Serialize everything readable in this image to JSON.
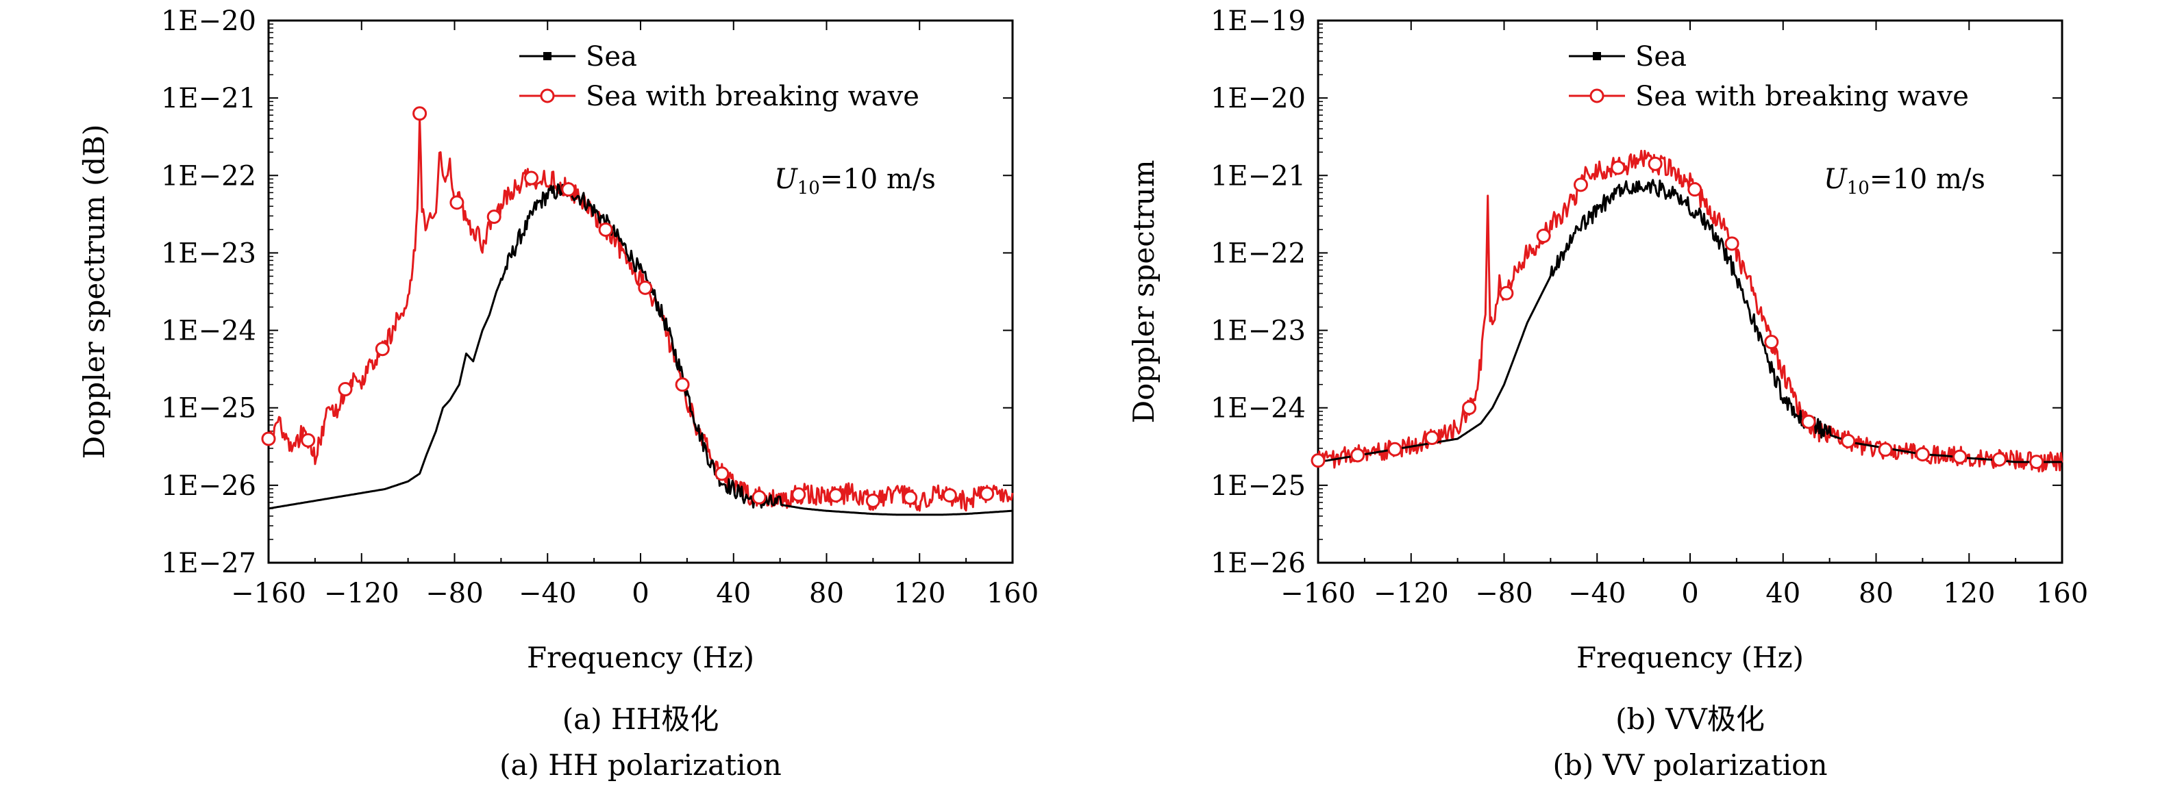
{
  "chart_data": [
    {
      "type": "line",
      "panel": "a",
      "xlabel": "Frequency (Hz)",
      "ylabel": "Doppler spectrum (dB)",
      "xlim": [
        -160,
        160
      ],
      "xticks": [
        -160,
        -120,
        -80,
        -40,
        0,
        40,
        80,
        120,
        160
      ],
      "ylog_exponents": [
        -27,
        -20
      ],
      "yscale": "log",
      "yticks": [
        "1E−27",
        "1E−26",
        "1E−25",
        "1E−24",
        "1E−23",
        "1E−22",
        "1E−21",
        "1E−20"
      ],
      "legend_position": "top-center",
      "annotation": {
        "var": "U",
        "sub": "10",
        "rest": "=10 m/s"
      },
      "caption_cn": "(a) HH极化",
      "caption_en": "(a) HH polarization",
      "series": [
        {
          "name": "Sea",
          "color": "#000000",
          "marker": "square",
          "x": [
            -160,
            -140,
            -120,
            -110,
            -100,
            -95,
            -92,
            -88,
            -85,
            -82,
            -78,
            -75,
            -72,
            -68,
            -65,
            -62,
            -58,
            -55,
            -52,
            -48,
            -45,
            -40,
            -35,
            -30,
            -25,
            -20,
            -15,
            -10,
            -5,
            0,
            5,
            10,
            15,
            20,
            25,
            30,
            35,
            40,
            45,
            50,
            60,
            70,
            80,
            90,
            100,
            110,
            120,
            130,
            140,
            150,
            160
          ],
          "y": [
            -26.3,
            -26.2,
            -26.1,
            -26.05,
            -25.95,
            -25.85,
            -25.6,
            -25.3,
            -25.0,
            -24.9,
            -24.7,
            -24.3,
            -24.4,
            -24.0,
            -23.8,
            -23.5,
            -23.2,
            -23.0,
            -22.8,
            -22.6,
            -22.4,
            -22.25,
            -22.2,
            -22.2,
            -22.3,
            -22.45,
            -22.6,
            -22.8,
            -23.0,
            -23.25,
            -23.5,
            -23.85,
            -24.3,
            -24.8,
            -25.3,
            -25.7,
            -25.95,
            -26.05,
            -26.15,
            -26.2,
            -26.25,
            -26.3,
            -26.33,
            -26.35,
            -26.37,
            -26.38,
            -26.38,
            -26.38,
            -26.37,
            -26.35,
            -26.33
          ]
        },
        {
          "name": "Sea with breaking wave",
          "color": "#e31a1c",
          "marker": "circle-open",
          "x": [
            -160,
            -155,
            -150,
            -145,
            -140,
            -135,
            -130,
            -125,
            -120,
            -115,
            -110,
            -105,
            -100,
            -98,
            -96,
            -95,
            -94,
            -92,
            -90,
            -88,
            -86,
            -84,
            -82,
            -80,
            -78,
            -75,
            -72,
            -70,
            -68,
            -65,
            -62,
            -60,
            -56,
            -52,
            -48,
            -45,
            -40,
            -35,
            -30,
            -25,
            -20,
            -15,
            -10,
            -5,
            0,
            5,
            10,
            15,
            20,
            25,
            30,
            35,
            40,
            45,
            50,
            60,
            70,
            80,
            90,
            100,
            110,
            120,
            130,
            140,
            150,
            160
          ],
          "y": [
            -25.4,
            -25.2,
            -25.5,
            -25.3,
            -25.6,
            -25.1,
            -25.0,
            -24.6,
            -24.7,
            -24.4,
            -24.2,
            -23.9,
            -23.6,
            -23.2,
            -22.5,
            -21.2,
            -22.4,
            -22.8,
            -22.5,
            -22.4,
            -21.6,
            -22.2,
            -21.8,
            -22.4,
            -22.3,
            -22.6,
            -22.8,
            -22.7,
            -23.0,
            -22.6,
            -22.5,
            -22.4,
            -22.2,
            -22.1,
            -22.0,
            -22.1,
            -22.05,
            -22.1,
            -22.2,
            -22.3,
            -22.5,
            -22.7,
            -22.9,
            -23.1,
            -23.35,
            -23.6,
            -23.9,
            -24.4,
            -24.9,
            -25.3,
            -25.6,
            -25.85,
            -26.0,
            -26.1,
            -26.15,
            -26.2,
            -26.1,
            -26.15,
            -26.1,
            -26.2,
            -26.1,
            -26.2,
            -26.1,
            -26.2,
            -26.1,
            -26.15
          ]
        }
      ],
      "marker_x": {
        "Sea with breaking wave": [
          -160,
          -143,
          -127,
          -111,
          -95,
          -79,
          -63,
          -47,
          -31,
          -15,
          2,
          18,
          35,
          51,
          68,
          84,
          100,
          116,
          133,
          149
        ]
      }
    },
    {
      "type": "line",
      "panel": "b",
      "xlabel": "Frequency (Hz)",
      "ylabel": "Doppler spectrum",
      "xlim": [
        -160,
        160
      ],
      "xticks": [
        -160,
        -120,
        -80,
        -40,
        0,
        40,
        80,
        120,
        160
      ],
      "ylog_exponents": [
        -26,
        -19
      ],
      "yscale": "log",
      "yticks": [
        "1E−26",
        "1E−25",
        "1E−24",
        "1E−23",
        "1E−22",
        "1E−21",
        "1E−20",
        "1E−19"
      ],
      "legend_position": "top-center",
      "annotation": {
        "var": "U",
        "sub": "10",
        "rest": "=10 m/s"
      },
      "caption_cn": "(b) VV极化",
      "caption_en": "(b) VV polarization",
      "series": [
        {
          "name": "Sea",
          "color": "#000000",
          "marker": "square",
          "x": [
            -160,
            -140,
            -120,
            -100,
            -95,
            -90,
            -85,
            -80,
            -75,
            -70,
            -65,
            -60,
            -55,
            -50,
            -45,
            -40,
            -35,
            -30,
            -25,
            -20,
            -15,
            -10,
            -5,
            0,
            5,
            10,
            15,
            20,
            25,
            30,
            35,
            40,
            45,
            50,
            55,
            60,
            70,
            80,
            90,
            100,
            110,
            120,
            130,
            140,
            150,
            160
          ],
          "y": [
            -24.7,
            -24.6,
            -24.5,
            -24.4,
            -24.3,
            -24.2,
            -24.0,
            -23.7,
            -23.3,
            -22.9,
            -22.6,
            -22.3,
            -22.0,
            -21.8,
            -21.6,
            -21.45,
            -21.3,
            -21.2,
            -21.15,
            -21.15,
            -21.15,
            -21.2,
            -21.3,
            -21.4,
            -21.55,
            -21.75,
            -22.0,
            -22.3,
            -22.7,
            -23.1,
            -23.5,
            -23.85,
            -24.1,
            -24.2,
            -24.25,
            -24.35,
            -24.45,
            -24.5,
            -24.55,
            -24.6,
            -24.62,
            -24.65,
            -24.67,
            -24.7,
            -24.7,
            -24.7
          ]
        },
        {
          "name": "Sea with breaking wave",
          "color": "#e31a1c",
          "marker": "circle-open",
          "x": [
            -160,
            -140,
            -120,
            -100,
            -95,
            -92,
            -90,
            -88,
            -87,
            -86,
            -84,
            -82,
            -80,
            -75,
            -70,
            -65,
            -60,
            -55,
            -50,
            -45,
            -40,
            -35,
            -30,
            -25,
            -20,
            -15,
            -10,
            -5,
            0,
            5,
            10,
            15,
            20,
            25,
            30,
            35,
            40,
            45,
            50,
            55,
            60,
            70,
            80,
            90,
            100,
            110,
            120,
            130,
            140,
            150,
            160
          ],
          "y": [
            -24.68,
            -24.6,
            -24.5,
            -24.25,
            -24.0,
            -23.8,
            -23.4,
            -22.8,
            -21.2,
            -22.9,
            -22.8,
            -22.4,
            -22.6,
            -22.2,
            -22.0,
            -21.9,
            -21.6,
            -21.5,
            -21.3,
            -21.0,
            -20.95,
            -20.9,
            -20.9,
            -20.85,
            -20.8,
            -20.85,
            -20.9,
            -21.0,
            -21.1,
            -21.3,
            -21.5,
            -21.7,
            -22.0,
            -22.35,
            -22.75,
            -23.15,
            -23.55,
            -23.9,
            -24.15,
            -24.3,
            -24.35,
            -24.45,
            -24.52,
            -24.57,
            -24.6,
            -24.62,
            -24.64,
            -24.66,
            -24.68,
            -24.7,
            -24.68
          ]
        }
      ],
      "marker_x": {
        "Sea with breaking wave": [
          -160,
          -143,
          -127,
          -111,
          -95,
          -79,
          -63,
          -47,
          -31,
          -15,
          2,
          18,
          35,
          51,
          68,
          84,
          100,
          116,
          133,
          149
        ]
      }
    }
  ]
}
